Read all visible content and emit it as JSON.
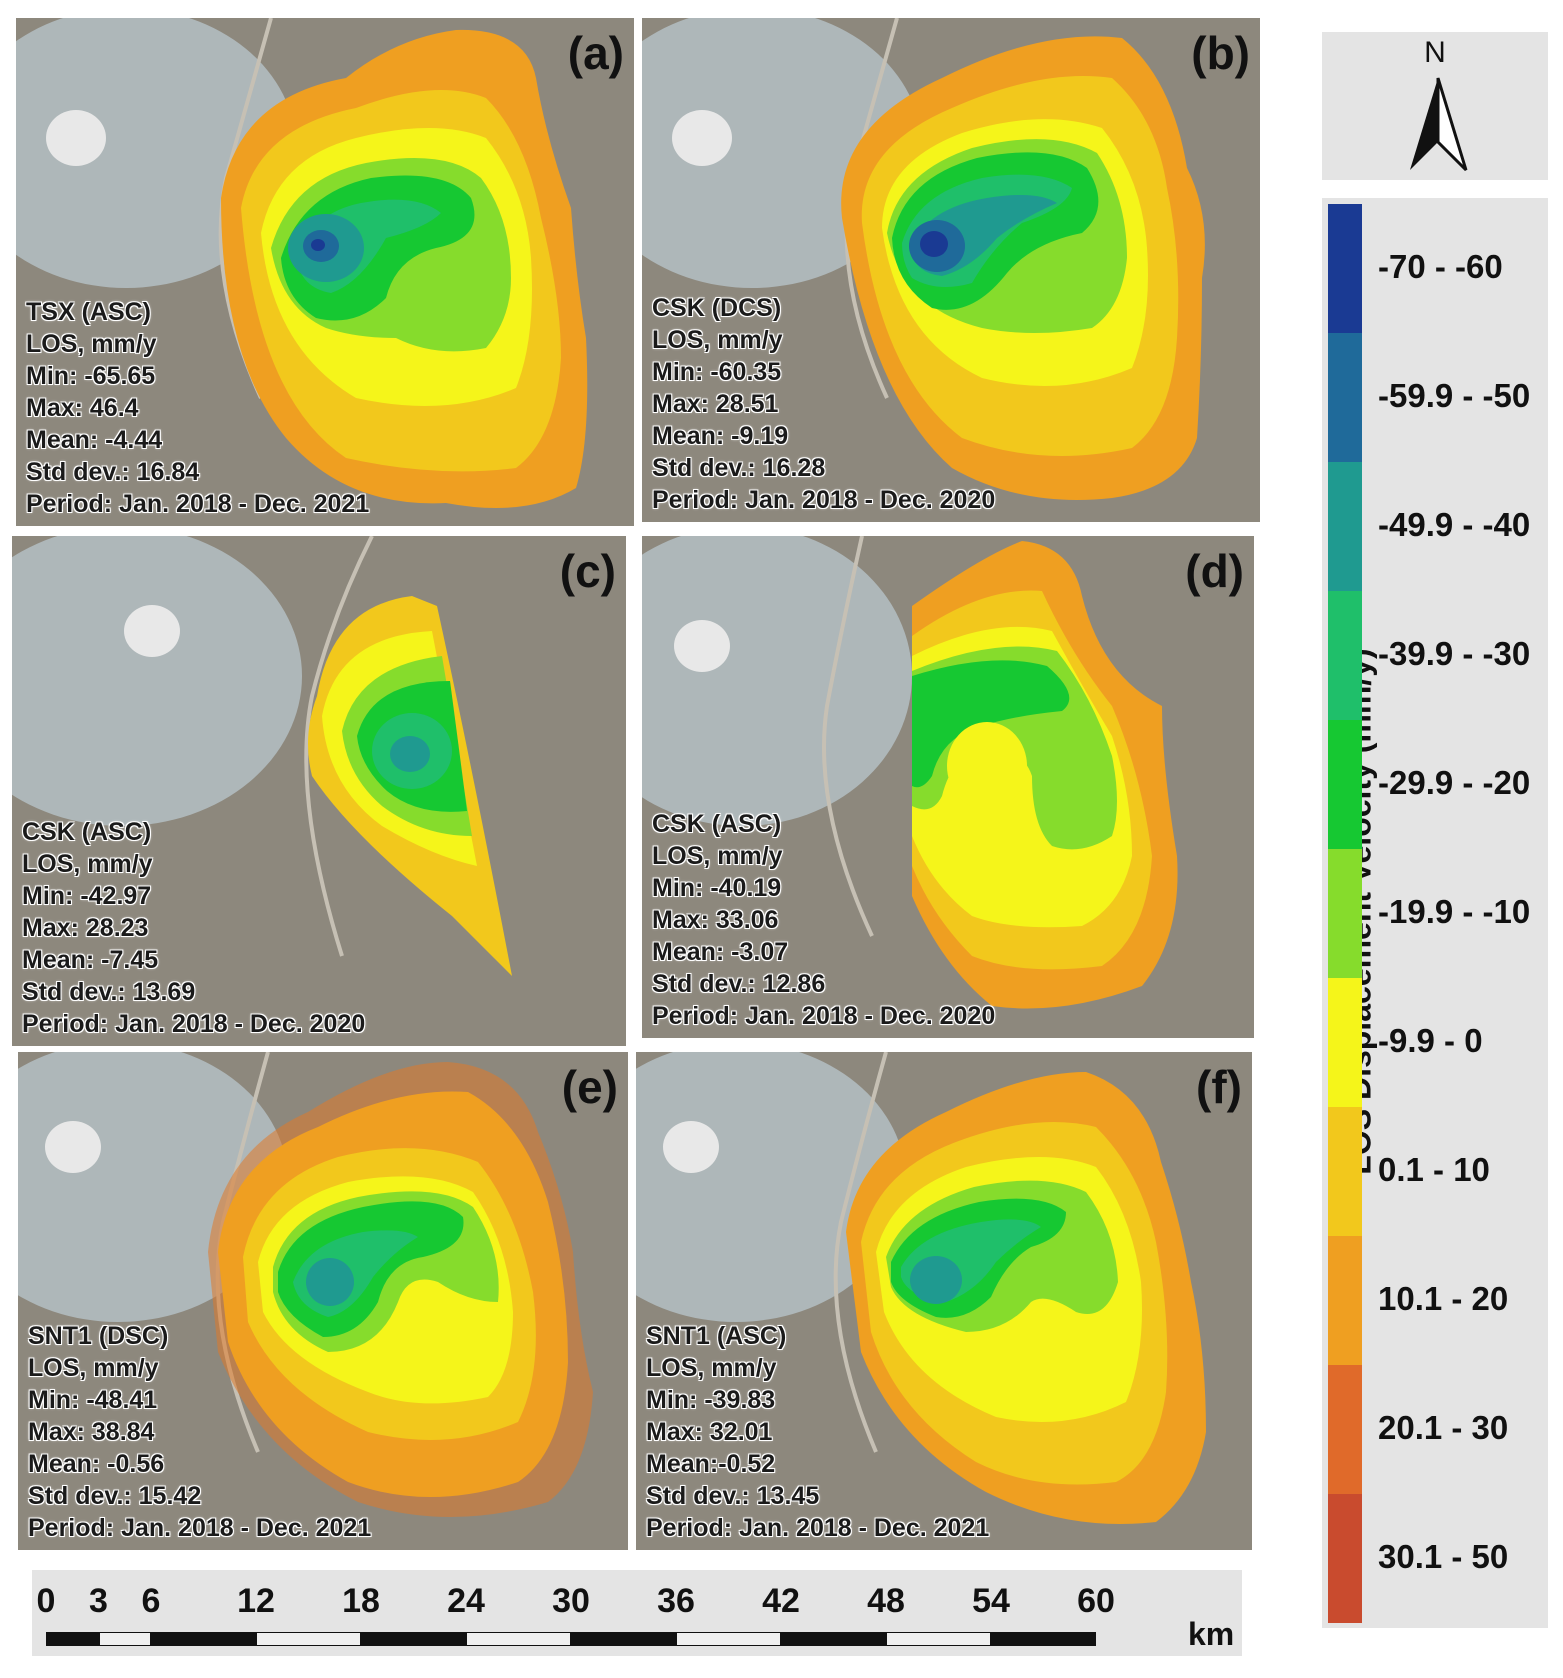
{
  "panels": [
    {
      "label": "(a)",
      "sensor": "TSX (ASC)",
      "units": "LOS, mm/y",
      "min": "Min: -65.65",
      "max": "Max: 46.4",
      "mean": "Mean: -4.44",
      "std": "Std dev.: 16.84",
      "period": "Period: Jan. 2018 - Dec. 2021"
    },
    {
      "label": "(b)",
      "sensor": "CSK (DCS)",
      "units": "LOS, mm/y",
      "min": "Min: -60.35",
      "max": "Max: 28.51",
      "mean": "Mean: -9.19",
      "std": "Std dev.: 16.28",
      "period": "Period: Jan. 2018 - Dec. 2020"
    },
    {
      "label": "(c)",
      "sensor": "CSK (ASC)",
      "units": "LOS, mm/y",
      "min": "Min: -42.97",
      "max": "Max: 28.23",
      "mean": "Mean: -7.45",
      "std": "Std dev.: 13.69",
      "period": "Period: Jan. 2018 - Dec. 2020"
    },
    {
      "label": "(d)",
      "sensor": "CSK (ASC)",
      "units": "LOS, mm/y",
      "min": "Min: -40.19",
      "max": "Max: 33.06",
      "mean": "Mean: -3.07",
      "std": "Std dev.: 12.86",
      "period": "Period: Jan. 2018 - Dec. 2020"
    },
    {
      "label": "(e)",
      "sensor": "SNT1 (DSC)",
      "units": "LOS, mm/y",
      "min": "Min: -48.41",
      "max": "Max: 38.84",
      "mean": "Mean: -0.56",
      "std": "Std dev.: 15.42",
      "period": "Period: Jan. 2018 - Dec. 2021"
    },
    {
      "label": "(f)",
      "sensor": "SNT1 (ASC)",
      "units": "LOS, mm/y",
      "min": "Min: -39.83",
      "max": "Max: 32.01",
      "mean": "Mean:-0.52",
      "std": "Std dev.: 13.45",
      "period": "Period: Jan. 2018 - Dec. 2021"
    }
  ],
  "north_arrow": {
    "letter": "N"
  },
  "legend": {
    "title": "LOS Displacement Velocity (mm/y)",
    "classes": [
      {
        "label": "-70 - -60",
        "color": "#1a3a93"
      },
      {
        "label": "-59.9 - -50",
        "color": "#1f6a9a"
      },
      {
        "label": "-49.9 - -40",
        "color": "#1f9a90"
      },
      {
        "label": "-39.9 - -30",
        "color": "#1fbf6a"
      },
      {
        "label": "-29.9 - -20",
        "color": "#16c832"
      },
      {
        "label": "-19.9 - -10",
        "color": "#86dc2c"
      },
      {
        "label": "-9.9 - 0",
        "color": "#f5f51a"
      },
      {
        "label": "0.1 - 10",
        "color": "#f2c81c"
      },
      {
        "label": "10.1 - 20",
        "color": "#ef9f21"
      },
      {
        "label": "20.1 - 30",
        "color": "#e06a2a"
      },
      {
        "label": "30.1 - 50",
        "color": "#c94b2e"
      }
    ]
  },
  "scalebar": {
    "ticks": [
      "0",
      "3",
      "6",
      "12",
      "18",
      "24",
      "30",
      "36",
      "42",
      "48",
      "54",
      "60"
    ],
    "unit": "km"
  }
}
